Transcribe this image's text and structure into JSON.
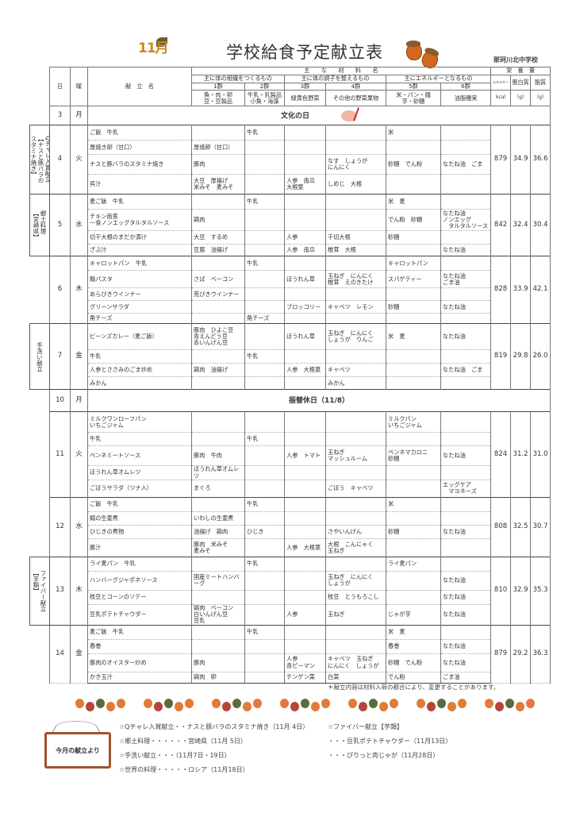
{
  "header": {
    "logo_text": "11月",
    "title": "学校給食予定献立表",
    "school": "那珂川北中学校"
  },
  "table_header": {
    "day": "日",
    "weekday": "曜",
    "menu_name": "献　立　名",
    "main_ingredients": "主　　な　　材　　料　　名",
    "categories": [
      {
        "label": "主に体の組織をつくるもの"
      },
      {
        "label": "主に体の調子を整えるもの"
      },
      {
        "label": "主にエネルギーとなるもの"
      }
    ],
    "groups": [
      {
        "name": "1群",
        "foods": "魚・肉・卵\n豆・豆製品"
      },
      {
        "name": "2群",
        "foods": "牛乳・乳製品\n小魚・海藻"
      },
      {
        "name": "3群",
        "foods": "緑黄色野菜"
      },
      {
        "name": "4群",
        "foods": "その他の野菜果物"
      },
      {
        "name": "5群",
        "foods": "米・パン・麺\n芋・砂糖"
      },
      {
        "name": "6群",
        "foods": "油脂種実"
      }
    ],
    "nutrition": "栄　養　量",
    "energy": "エネルギー",
    "protein": "蛋白質",
    "fat": "脂質",
    "energy_unit": "kcal",
    "protein_unit": "（g）",
    "fat_unit": "（g）"
  },
  "days": [
    {
      "day": "3",
      "weekday": "月",
      "holiday": "文化の日"
    },
    {
      "day": "4",
      "weekday": "火",
      "label": [
        "Qチャレ入賞献立",
        "【ナスと豚バラの",
        "スタミナ焼き】"
      ],
      "energy": "879",
      "protein": "34.9",
      "fat": "36.6",
      "dishes": [
        [
          "ご飯　牛乳",
          "",
          "牛乳",
          "",
          "",
          "米",
          ""
        ],
        [
          "厚焼き卵（甘口）",
          "厚焼卵（甘口）",
          "",
          "",
          "",
          "",
          ""
        ],
        [
          "ナスと豚バラのスタミナ焼き",
          "豚肉",
          "",
          "",
          "なす　しょうが\nにんにく",
          "砂糖　でん粉",
          "なたね油　ごま"
        ],
        [
          "呉汁",
          "大豆　厚揚げ\n米みそ　麦みそ",
          "",
          "人参　南瓜\n大根葉",
          "しめじ　大根",
          "",
          ""
        ]
      ]
    },
    {
      "day": "5",
      "weekday": "水",
      "label": [
        "郷土料理",
        "【宮崎県】"
      ],
      "energy": "842",
      "protein": "32.4",
      "fat": "30.4",
      "dishes": [
        [
          "麦ご飯　牛乳",
          "",
          "牛乳",
          "",
          "",
          "米　麦",
          ""
        ],
        [
          "チキン南蛮\n一食ノンエッグタルタルソース",
          "鶏肉",
          "",
          "",
          "",
          "でん粉　砂糖",
          "なたね油\nノンエッグ\n　タルタルソース"
        ],
        [
          "切干大根のまだか漬け",
          "大豆　するめ",
          "",
          "人参",
          "千切大根",
          "砂糖",
          ""
        ],
        [
          "ざぶ汁",
          "豆腐　油揚げ",
          "",
          "人参　南瓜",
          "椎茸　大根",
          "",
          "なたね油"
        ]
      ]
    },
    {
      "day": "6",
      "weekday": "木",
      "energy": "828",
      "protein": "33.9",
      "fat": "42.1",
      "dishes": [
        [
          "キャロットパン　牛乳",
          "",
          "牛乳",
          "",
          "",
          "キャロットパン",
          ""
        ],
        [
          "鯖パスタ",
          "さば　ベーコン",
          "",
          "ほうれん草",
          "玉ねぎ　にんにく\n椎茸　えのきたけ",
          "スパゲティー",
          "なたね油\nごま油"
        ],
        [
          "あらびきウインナー",
          "荒びきウインナー",
          "",
          "",
          "",
          "",
          ""
        ],
        [
          "グリーンサラダ",
          "",
          "",
          "ブロッコリー",
          "キャベツ　レモン",
          "砂糖",
          "なたね油"
        ],
        [
          "角チーズ",
          "",
          "角チーズ",
          "",
          "",
          "",
          ""
        ]
      ]
    },
    {
      "day": "7",
      "weekday": "金",
      "label": [
        "手洗い献立"
      ],
      "energy": "819",
      "protein": "29.8",
      "fat": "26.0",
      "dishes": [
        [
          "ビーンズカレー（麦ご飯）",
          "豚肉　ひよこ豆\n青えんどう豆\n赤いんげん豆",
          "",
          "ほうれん草",
          "玉ねぎ　にんにく\nしょうが　りんご",
          "米　麦",
          "なたね油"
        ],
        [
          "牛乳",
          "",
          "牛乳",
          "",
          "",
          "",
          ""
        ],
        [
          "人参とささみのごま炒め",
          "鶏肉　油揚げ",
          "",
          "人参　大根葉",
          "キャベツ",
          "",
          "なたね油　ごま"
        ],
        [
          "みかん",
          "",
          "",
          "",
          "みかん",
          "",
          ""
        ]
      ]
    },
    {
      "day": "10",
      "weekday": "月",
      "holiday": "振替休日（11/8）"
    },
    {
      "day": "11",
      "weekday": "火",
      "energy": "824",
      "protein": "31.2",
      "fat": "31.0",
      "dishes": [
        [
          "ミルクワンローフパン\nいちごジャム",
          "",
          "",
          "",
          "",
          "ミルクパン\nいちごジャム",
          ""
        ],
        [
          "牛乳",
          "",
          "牛乳",
          "",
          "",
          "",
          ""
        ],
        [
          "ペンネミートソース",
          "豚肉　牛肉",
          "",
          "人参　トマト",
          "玉ねぎ\nマッシュルーム",
          "ペンネマカロニ\n砂糖",
          "なたね油"
        ],
        [
          "ほうれん草オムレツ",
          "ほうれん草オムレツ",
          "",
          "",
          "",
          "",
          ""
        ],
        [
          "ごぼうサラダ（ツナ入）",
          "まぐろ",
          "",
          "",
          "ごぼう　キャベツ",
          "",
          "エッグケア\n　マヨネーズ"
        ]
      ]
    },
    {
      "day": "12",
      "weekday": "水",
      "energy": "808",
      "protein": "32.5",
      "fat": "30.7",
      "dishes": [
        [
          "ご飯　牛乳",
          "",
          "牛乳",
          "",
          "",
          "米",
          ""
        ],
        [
          "鰯の生姜煮",
          "いわしの生姜煮",
          "",
          "",
          "",
          "",
          ""
        ],
        [
          "ひじきの煮物",
          "油揚げ　鶏肉",
          "ひじき",
          "",
          "さやいんげん",
          "砂糖",
          "なたね油"
        ],
        [
          "豚汁",
          "豚肉　米みそ\n麦みそ",
          "",
          "人参　大根葉",
          "大根　こんにゃく\n玉ねぎ",
          "",
          ""
        ]
      ]
    },
    {
      "day": "13",
      "weekday": "木",
      "label": [
        "ファイバー献立",
        "【芋類】"
      ],
      "energy": "810",
      "protein": "32.9",
      "fat": "35.3",
      "dishes": [
        [
          "ライ麦パン　牛乳",
          "",
          "牛乳",
          "",
          "",
          "ライ麦パン",
          ""
        ],
        [
          "ハンバーグジャポネソース",
          "国産ミートハンバーグ",
          "",
          "",
          "玉ねぎ　にんにく\nしょうが",
          "",
          "なたね油"
        ],
        [
          "枝豆とコーンのソテー",
          "",
          "",
          "",
          "枝豆　とうもろこし",
          "",
          "なたね油"
        ],
        [
          "豆乳ポテトチャウダー",
          "鶏肉　ベーコン\n白いんげん豆\n豆乳",
          "",
          "人参",
          "玉ねぎ",
          "じゃが芋",
          "なたね油"
        ]
      ]
    },
    {
      "day": "14",
      "weekday": "金",
      "energy": "879",
      "protein": "29.2",
      "fat": "36.3",
      "dishes": [
        [
          "麦ご飯　牛乳",
          "",
          "牛乳",
          "",
          "",
          "米　麦",
          ""
        ],
        [
          "春巻",
          "",
          "",
          "",
          "",
          "春巻",
          "なたね油"
        ],
        [
          "豚肉のオイスター炒め",
          "豚肉",
          "",
          "人参\n青ピーマン",
          "キャベツ　玉ねぎ\nにんにく　しょうが",
          "砂糖　でん粉",
          "なたね油"
        ],
        [
          "かき玉汁",
          "鶏肉　卵",
          "",
          "チンゲン菜",
          "白菜",
          "でん粉",
          "ごま油"
        ]
      ]
    }
  ],
  "footnote": "＊献立内容は材料入荷の都合により、変更することがあります。",
  "notes": {
    "board_label": "今月の献立より",
    "left": [
      "☆Qチャレ入賞献立・・ナスと豚バラのスタミナ焼き（11月 4日）",
      "☆郷土料理・・・・・・宮崎県（11月 5日）",
      "☆手洗い献立・・・（11月7日・19日）",
      "☆世界の料理・・・・・ロシア（11月18日）"
    ],
    "right": [
      "☆ファイバー献立【芋類】",
      "・・・豆乳ポテトチャウダー（11月13日）",
      "・・・ぴりっと肉じゃが（11月28日）"
    ]
  },
  "colors": {
    "acorn_orange": "#e07b39",
    "acorn_red": "#b5453a",
    "acorn_green": "#5d6b3a",
    "board": "#a0522d"
  }
}
